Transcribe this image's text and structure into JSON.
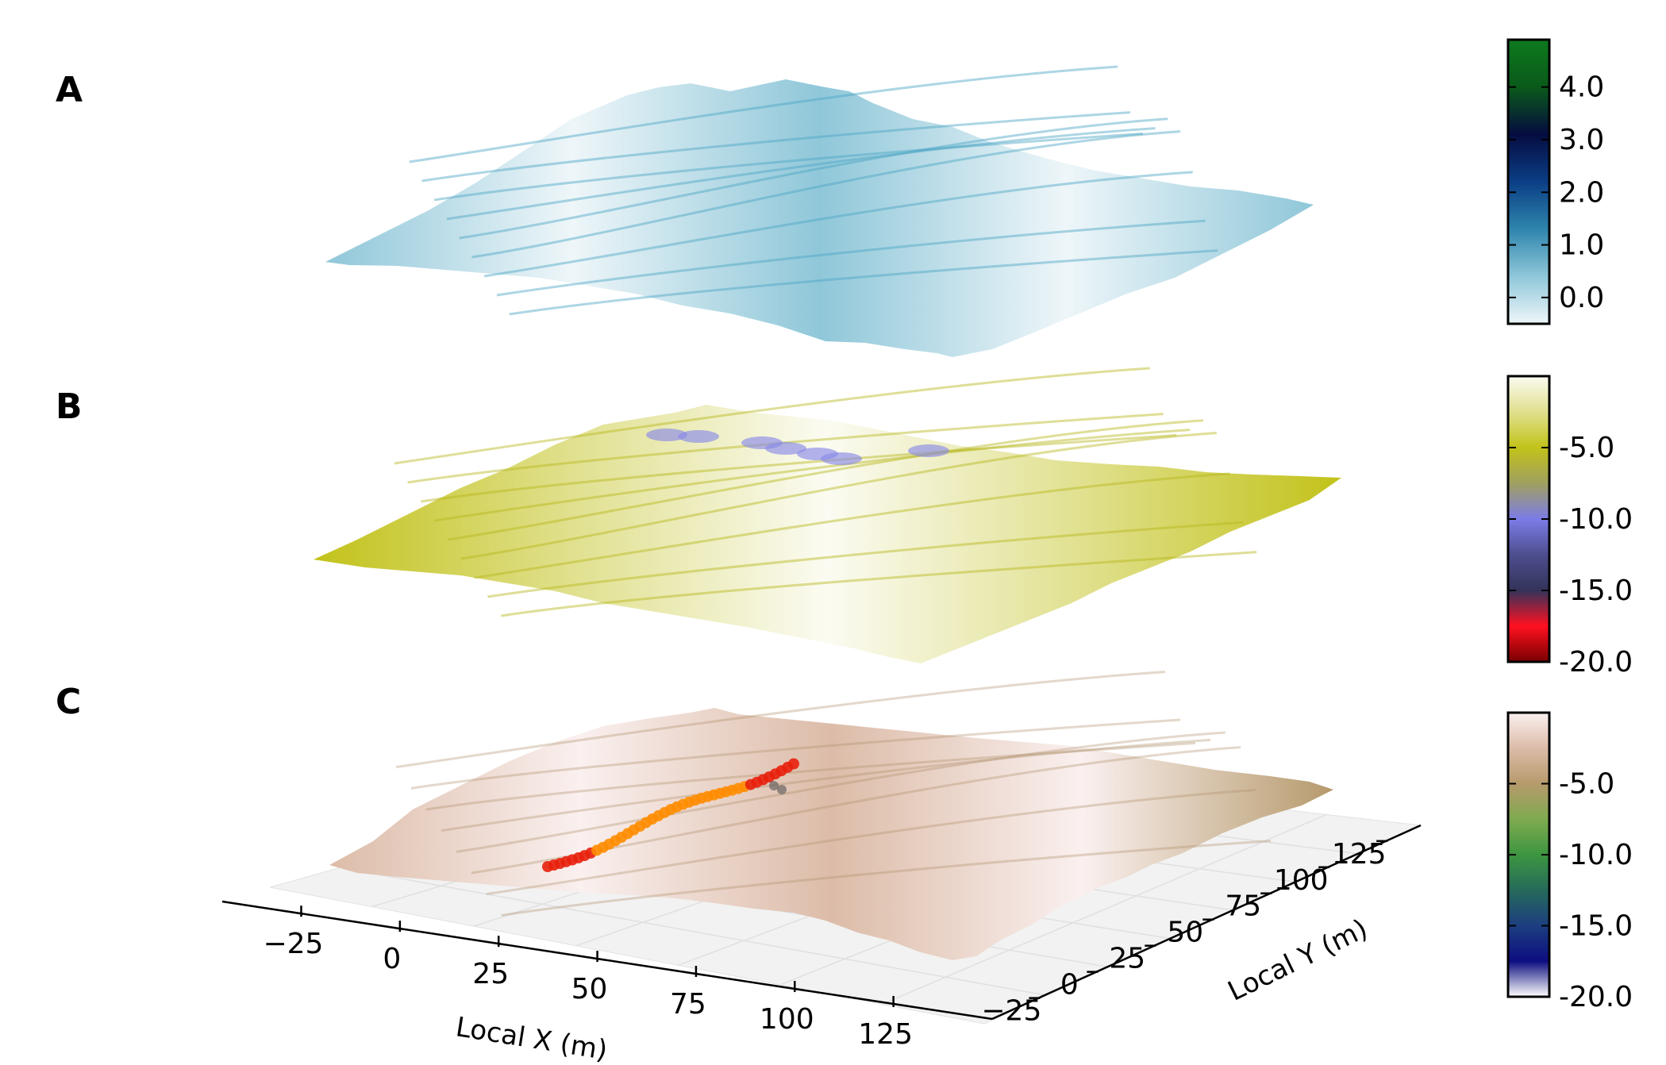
{
  "chart_data": [
    {
      "type": "surface",
      "panel_label": "A",
      "colorbar": {
        "ticks": [
          0.0,
          1.0,
          2.0,
          3.0,
          4.0
        ],
        "tick_labels": [
          "0.0",
          "1.0",
          "2.0",
          "3.0",
          "4.0"
        ],
        "range": [
          -0.5,
          4.9
        ],
        "colors": [
          "#eef6f9",
          "#8fc7d9",
          "#2e85ad",
          "#0b3e85",
          "#050c40",
          "#0a5a1a",
          "#0e7a1e"
        ]
      }
    },
    {
      "type": "surface",
      "panel_label": "B",
      "colorbar": {
        "ticks": [
          -5.0,
          -10.0,
          -15.0,
          -20.0
        ],
        "tick_labels": [
          "-5.0",
          "-10.0",
          "-15.0",
          "-20.0"
        ],
        "range": [
          -20.0,
          0.0
        ],
        "colors": [
          "#fbfbf2",
          "#e0e08e",
          "#c2c21a",
          "#a0a060",
          "#7c7ce8",
          "#4e4e8f",
          "#33335a",
          "#ff1020",
          "#780000"
        ]
      },
      "highlight_color": "#8a8ae8"
    },
    {
      "type": "surface",
      "panel_label": "C",
      "colorbar": {
        "ticks": [
          -5.0,
          -10.0,
          -15.0,
          -20.0
        ],
        "tick_labels": [
          "-5.0",
          "-10.0",
          "-15.0",
          "-20.0"
        ],
        "range": [
          -20.0,
          0.0
        ],
        "colors": [
          "#faf0ef",
          "#dcbca8",
          "#b69a6c",
          "#7faa50",
          "#3d9640",
          "#266a5a",
          "#1c3e80",
          "#0d0d80",
          "#ffffff"
        ]
      },
      "track_colors": [
        "#e8200c",
        "#ff8c00",
        "#555555"
      ],
      "xaxis": {
        "label": "Local X (m)",
        "ticks": [
          -25,
          0,
          25,
          50,
          75,
          100,
          125
        ],
        "tick_labels": [
          "−25",
          "0",
          "25",
          "50",
          "75",
          "100",
          "125"
        ],
        "range": [
          -45,
          150
        ]
      },
      "yaxis": {
        "label": "Local Y (m)",
        "ticks": [
          -25,
          0,
          25,
          50,
          75,
          100,
          125
        ],
        "tick_labels": [
          "−25",
          "0",
          "25",
          "50",
          "75",
          "100",
          "125"
        ],
        "range": [
          -45,
          140
        ]
      }
    }
  ]
}
